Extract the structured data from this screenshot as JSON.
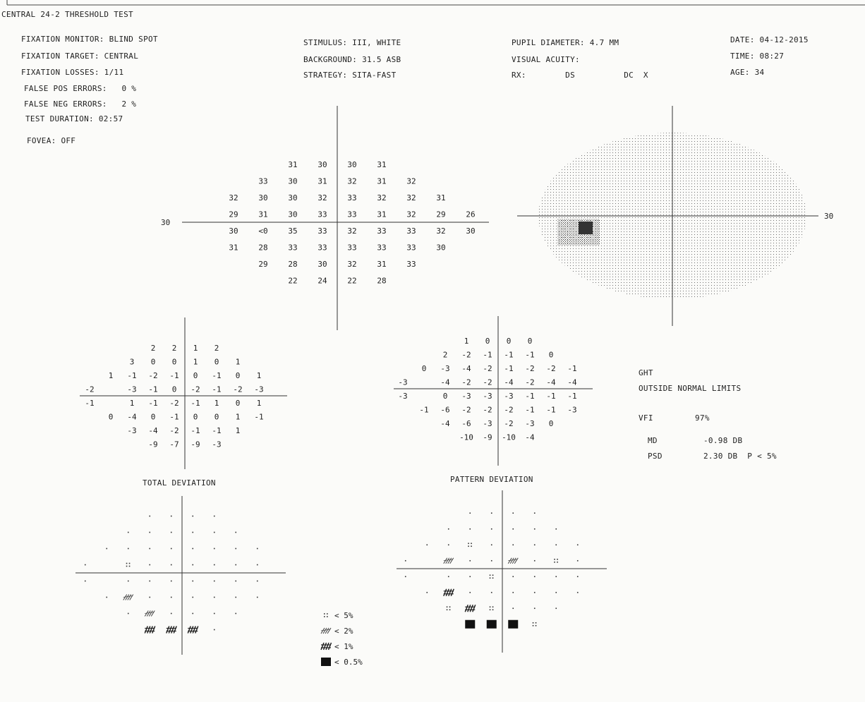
{
  "header": {
    "title": "CENTRAL 24-2 THRESHOLD TEST",
    "left": [
      "FIXATION MONITOR: BLIND SPOT",
      "FIXATION TARGET: CENTRAL",
      "FIXATION LOSSES: 1/11",
      "FALSE POS ERRORS:   0 %",
      "FALSE NEG ERRORS:   2 %",
      "TEST DURATION: 02:57",
      "FOVEA: OFF"
    ],
    "center": [
      "STIMULUS: III, WHITE",
      "BACKGROUND: 31.5 ASB",
      "STRATEGY: SITA-FAST"
    ],
    "pupil": [
      "PUPIL DIAMETER: 4.7 MM",
      "VISUAL ACUITY:",
      "RX:        DS          DC  X"
    ],
    "right": [
      "DATE: 04-12-2015",
      "TIME: 08:27",
      "AGE: 34"
    ]
  },
  "threshold": {
    "axis_label_left": "30",
    "rows": [
      {
        "x0": -2,
        "values": [
          "31",
          "30",
          "30",
          "31"
        ]
      },
      {
        "x0": -3,
        "values": [
          "33",
          "30",
          "31",
          "32",
          "31",
          "32"
        ]
      },
      {
        "x0": -4,
        "values": [
          "32",
          "30",
          "30",
          "32",
          "33",
          "32",
          "32",
          "31"
        ]
      },
      {
        "x0": -4,
        "values": [
          "29",
          "31",
          "30",
          "33",
          "33",
          "31",
          "32",
          "29",
          "26"
        ]
      },
      {
        "x0": -4,
        "values": [
          "30",
          "<0",
          "35",
          "33",
          "32",
          "33",
          "33",
          "32",
          "30"
        ]
      },
      {
        "x0": -4,
        "values": [
          "31",
          "28",
          "33",
          "33",
          "33",
          "33",
          "33",
          "30"
        ]
      },
      {
        "x0": -3,
        "values": [
          "29",
          "28",
          "30",
          "32",
          "31",
          "33"
        ]
      },
      {
        "x0": -2,
        "values": [
          "22",
          "24",
          "22",
          "28"
        ]
      }
    ]
  },
  "grayscale": {
    "axis_label_right": "30"
  },
  "total_deviation": {
    "label": "TOTAL DEVIATION",
    "rows": [
      {
        "x0": -2,
        "values": [
          "2",
          "2",
          "1",
          "2"
        ]
      },
      {
        "x0": -3,
        "values": [
          "3",
          "0",
          "0",
          "1",
          "0",
          "1"
        ]
      },
      {
        "x0": -4,
        "values": [
          "1",
          "-1",
          "-2",
          "-1",
          "0",
          "-1",
          "0",
          "1"
        ]
      },
      {
        "x0": -5,
        "values": [
          "-2",
          "",
          "-3",
          "-1",
          "0",
          "-2",
          "-1",
          "-2",
          "-3"
        ]
      },
      {
        "x0": -5,
        "values": [
          "-1",
          "",
          "1",
          "-1",
          "-2",
          "-1",
          "1",
          "0",
          "1"
        ]
      },
      {
        "x0": -4,
        "values": [
          "0",
          "-4",
          "0",
          "-1",
          "0",
          "0",
          "1",
          "-1"
        ]
      },
      {
        "x0": -3,
        "values": [
          "-3",
          "-4",
          "-2",
          "-1",
          "-1",
          "1"
        ]
      },
      {
        "x0": -2,
        "values": [
          "-9",
          "-7",
          "-9",
          "-3"
        ]
      }
    ]
  },
  "pattern_deviation": {
    "label": "PATTERN DEVIATION",
    "rows": [
      {
        "x0": -2,
        "values": [
          "1",
          "0",
          "0",
          "0"
        ]
      },
      {
        "x0": -3,
        "values": [
          "2",
          "-2",
          "-1",
          "-1",
          "-1",
          "0"
        ]
      },
      {
        "x0": -4,
        "values": [
          "0",
          "-3",
          "-4",
          "-2",
          "-1",
          "-2",
          "-2",
          "-1"
        ]
      },
      {
        "x0": -5,
        "values": [
          "-3",
          "",
          "-4",
          "-2",
          "-2",
          "-4",
          "-2",
          "-4",
          "-4"
        ]
      },
      {
        "x0": -5,
        "values": [
          "-3",
          "",
          "0",
          "-3",
          "-3",
          "-3",
          "-1",
          "-1",
          "-1"
        ]
      },
      {
        "x0": -4,
        "values": [
          "-1",
          "-6",
          "-2",
          "-2",
          "-2",
          "-1",
          "-1",
          "-3"
        ]
      },
      {
        "x0": -3,
        "values": [
          "-4",
          "-6",
          "-3",
          "-2",
          "-3",
          "0"
        ]
      },
      {
        "x0": -2,
        "values": [
          "-10",
          "-9",
          "-10",
          "-4"
        ]
      }
    ]
  },
  "total_deviation_prob": {
    "rows": [
      {
        "x0": -2,
        "cells": [
          "p",
          "p",
          "p",
          "p"
        ]
      },
      {
        "x0": -3,
        "cells": [
          "p",
          "p",
          "p",
          "p",
          "p",
          "p"
        ]
      },
      {
        "x0": -4,
        "cells": [
          "p",
          "p",
          "p",
          "p",
          "p",
          "p",
          "p",
          "p"
        ]
      },
      {
        "x0": -5,
        "cells": [
          "p",
          "",
          "c5",
          "p",
          "p",
          "p",
          "p",
          "p",
          "p"
        ]
      },
      {
        "x0": -5,
        "cells": [
          "p",
          "",
          "p",
          "p",
          "p",
          "p",
          "p",
          "p",
          "p"
        ]
      },
      {
        "x0": -4,
        "cells": [
          "p",
          "c2",
          "p",
          "p",
          "p",
          "p",
          "p",
          "p"
        ]
      },
      {
        "x0": -3,
        "cells": [
          "p",
          "c2",
          "p",
          "p",
          "p",
          "p"
        ]
      },
      {
        "x0": -2,
        "cells": [
          "c1",
          "c1",
          "c1",
          "p"
        ]
      }
    ]
  },
  "pattern_deviation_prob": {
    "rows": [
      {
        "x0": -2,
        "cells": [
          "p",
          "p",
          "p",
          "p"
        ]
      },
      {
        "x0": -3,
        "cells": [
          "p",
          "p",
          "p",
          "p",
          "p",
          "p"
        ]
      },
      {
        "x0": -4,
        "cells": [
          "p",
          "p",
          "c5",
          "p",
          "p",
          "p",
          "p",
          "p"
        ]
      },
      {
        "x0": -5,
        "cells": [
          "p",
          "",
          "c2",
          "p",
          "p",
          "c2",
          "p",
          "c5",
          "p"
        ]
      },
      {
        "x0": -5,
        "cells": [
          "p",
          "",
          "p",
          "p",
          "c5",
          "p",
          "p",
          "p",
          "p"
        ]
      },
      {
        "x0": -4,
        "cells": [
          "p",
          "c1",
          "p",
          "p",
          "p",
          "p",
          "p",
          "p"
        ]
      },
      {
        "x0": -3,
        "cells": [
          "c5",
          "c1",
          "c5",
          "p",
          "p",
          "p"
        ]
      },
      {
        "x0": -2,
        "cells": [
          "c05",
          "c05",
          "c05",
          "c5"
        ]
      }
    ]
  },
  "legend": [
    {
      "symbol": "c5",
      "label": "< 5%"
    },
    {
      "symbol": "c2",
      "label": "< 2%"
    },
    {
      "symbol": "c1",
      "label": "< 1%"
    },
    {
      "symbol": "c05",
      "label": "< 0.5%"
    }
  ],
  "indices": {
    "ght_label": "GHT",
    "ght_value": "OUTSIDE NORMAL LIMITS",
    "vfi_label": "VFI",
    "vfi_value": "97%",
    "md_label": "MD",
    "md_value": "-0.98 DB",
    "psd_label": "PSD",
    "psd_value": "2.30 DB  P < 5%"
  }
}
